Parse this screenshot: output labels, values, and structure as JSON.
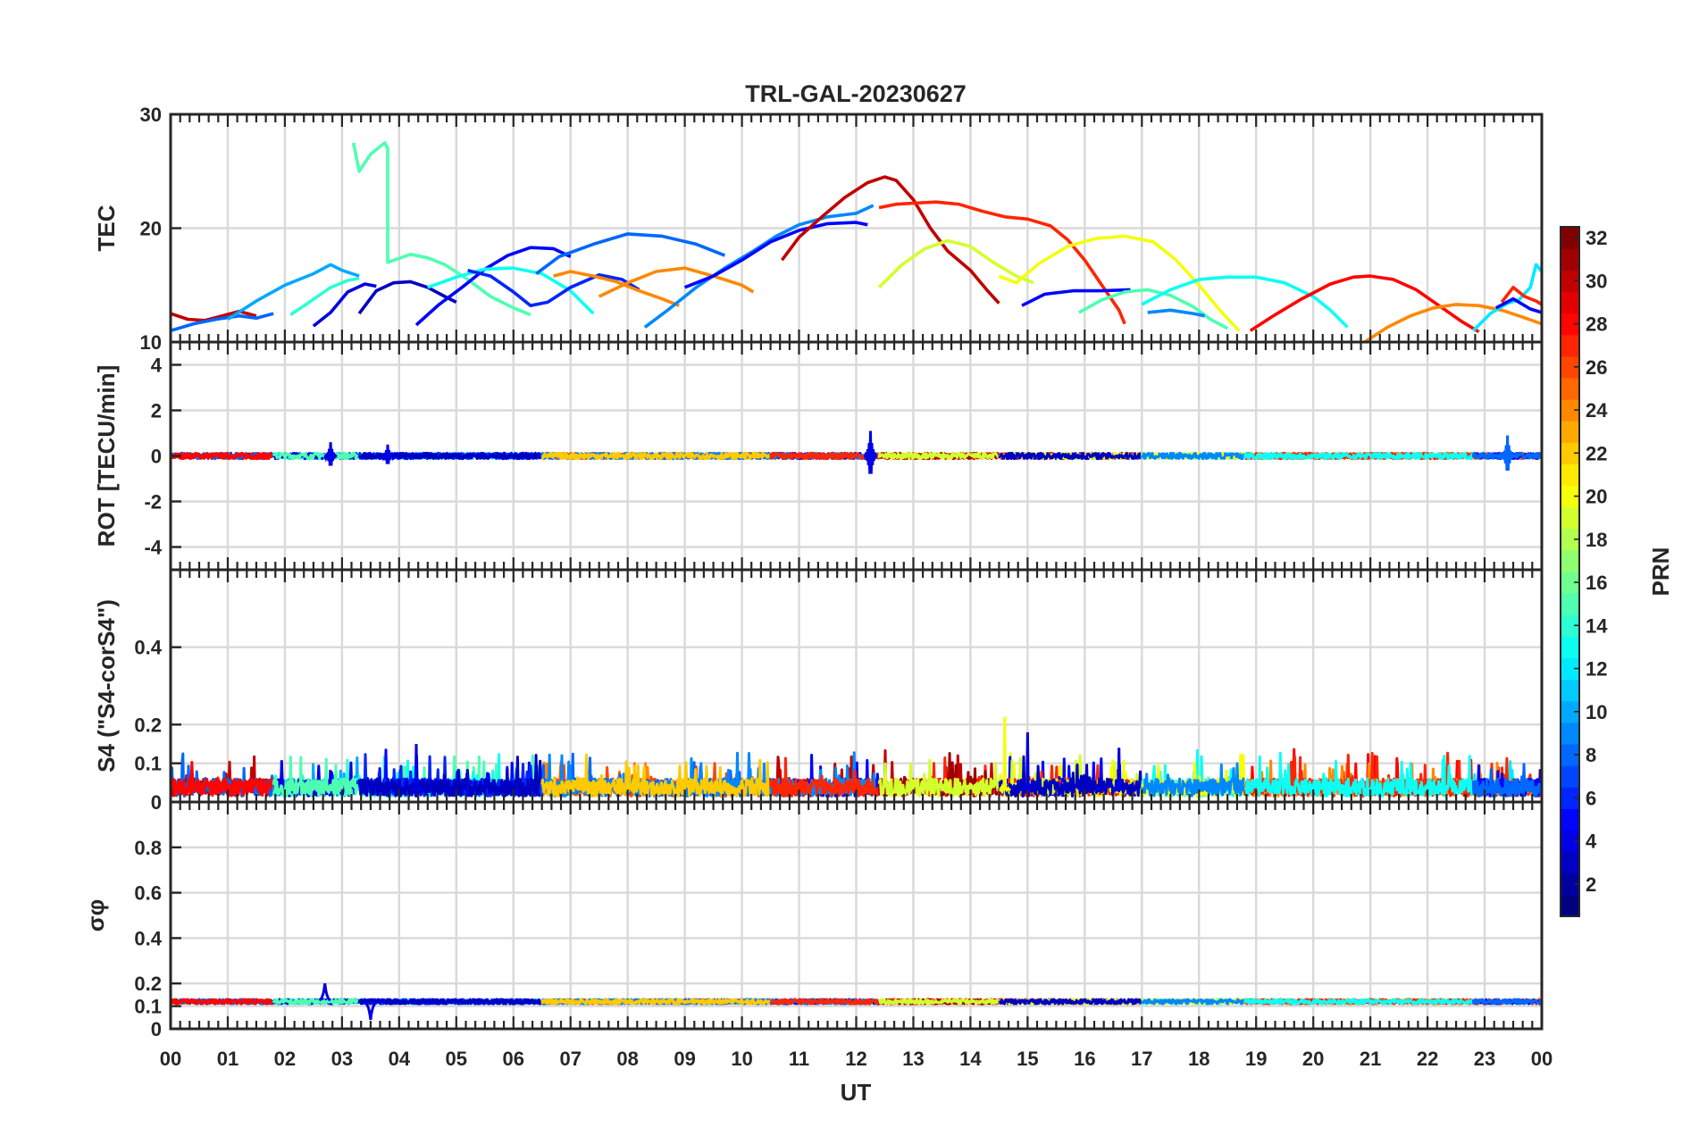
{
  "chart_data": {
    "type": "line",
    "title": "TRL-GAL-20230627",
    "xlabel": "UT",
    "x_ticks": [
      "00",
      "01",
      "02",
      "03",
      "04",
      "05",
      "06",
      "07",
      "08",
      "09",
      "10",
      "11",
      "12",
      "13",
      "14",
      "15",
      "16",
      "17",
      "18",
      "19",
      "20",
      "21",
      "22",
      "23",
      "00"
    ],
    "xlim": [
      0,
      24
    ],
    "grid": true,
    "colormap": "jet",
    "colorbar": {
      "label": "PRN",
      "range": [
        1,
        32
      ],
      "ticks": [
        2,
        4,
        6,
        8,
        10,
        12,
        14,
        16,
        18,
        20,
        22,
        24,
        26,
        28,
        30,
        32
      ],
      "placement": "right"
    },
    "panels": [
      {
        "id": "tec",
        "ylabel": "TEC",
        "ylim": [
          10,
          30
        ],
        "yticks": [
          10,
          20,
          30
        ],
        "series": [
          {
            "prn": 30,
            "x": [
              0.0,
              0.3,
              0.6,
              0.9,
              1.2,
              1.5
            ],
            "y": [
              12.5,
              12.0,
              11.9,
              12.3,
              12.7,
              12.3
            ]
          },
          {
            "prn": 8,
            "x": [
              0.0,
              0.4,
              0.8,
              1.2,
              1.5,
              1.8
            ],
            "y": [
              11.0,
              11.6,
              12.0,
              12.3,
              12.1,
              12.5
            ]
          },
          {
            "prn": 10,
            "x": [
              1.0,
              1.5,
              2.0,
              2.5,
              2.8,
              3.0,
              3.3
            ],
            "y": [
              12.0,
              13.6,
              15.0,
              16.0,
              16.8,
              16.3,
              15.8
            ]
          },
          {
            "prn": 14,
            "x": [
              2.1,
              2.4,
              2.8,
              3.1,
              3.3
            ],
            "y": [
              12.4,
              13.4,
              14.8,
              15.4,
              15.6
            ]
          },
          {
            "prn": 4,
            "x": [
              2.5,
              2.8,
              3.1,
              3.4,
              3.6
            ],
            "y": [
              11.4,
              12.6,
              14.4,
              15.1,
              14.9
            ]
          },
          {
            "prn": 15,
            "x": [
              3.2,
              3.3,
              3.5,
              3.75,
              3.8,
              3.8,
              4.2,
              4.5,
              4.8,
              5.2,
              5.6,
              6.0,
              6.3
            ],
            "y": [
              27.5,
              25.0,
              26.5,
              27.5,
              27.0,
              17.0,
              17.7,
              17.4,
              16.8,
              15.5,
              14.0,
              13.0,
              12.4
            ]
          },
          {
            "prn": 3,
            "x": [
              3.3,
              3.6,
              3.9,
              4.2,
              4.5,
              4.8,
              5.0
            ],
            "y": [
              12.5,
              14.5,
              15.2,
              15.3,
              14.8,
              14.0,
              13.5
            ]
          },
          {
            "prn": 5,
            "x": [
              4.3,
              4.7,
              5.1,
              5.5,
              5.9,
              6.3,
              6.7,
              7.0
            ],
            "y": [
              11.5,
              13.3,
              14.8,
              16.4,
              17.6,
              18.3,
              18.2,
              17.5
            ]
          },
          {
            "prn": 13,
            "x": [
              4.5,
              5.0,
              5.5,
              6.0,
              6.5,
              7.0,
              7.4
            ],
            "y": [
              14.8,
              15.7,
              16.4,
              16.5,
              16.0,
              14.5,
              12.5
            ]
          },
          {
            "prn": 6,
            "x": [
              5.2,
              5.6,
              6.0,
              6.3,
              6.6,
              7.0,
              7.5,
              7.9,
              8.2
            ],
            "y": [
              16.3,
              15.8,
              14.4,
              13.2,
              13.5,
              14.8,
              15.9,
              15.5,
              14.6
            ]
          },
          {
            "prn": 24,
            "x": [
              6.7,
              7.0,
              7.4,
              7.8,
              8.2,
              8.6,
              8.9
            ],
            "y": [
              15.8,
              16.2,
              15.8,
              15.3,
              14.5,
              13.8,
              13.2
            ]
          },
          {
            "prn": 8,
            "x": [
              6.4,
              6.8,
              7.4,
              8.0,
              8.6,
              9.2,
              9.7
            ],
            "y": [
              16.0,
              17.5,
              18.6,
              19.5,
              19.3,
              18.6,
              17.6
            ]
          },
          {
            "prn": 24,
            "x": [
              7.5,
              8.0,
              8.5,
              9.0,
              9.5,
              10.0,
              10.2
            ],
            "y": [
              14.0,
              15.2,
              16.2,
              16.5,
              15.8,
              15.0,
              14.4
            ]
          },
          {
            "prn": 9,
            "x": [
              8.3,
              8.7,
              9.2,
              9.7,
              10.2,
              10.6,
              11.0,
              11.5,
              12.0,
              12.3
            ],
            "y": [
              11.3,
              12.8,
              14.8,
              16.5,
              18.0,
              19.3,
              20.3,
              21.0,
              21.3,
              22.0
            ]
          },
          {
            "prn": 5,
            "x": [
              9.0,
              9.5,
              10.0,
              10.5,
              11.0,
              11.5,
              12.0,
              12.2
            ],
            "y": [
              14.8,
              15.8,
              17.2,
              18.8,
              19.8,
              20.4,
              20.5,
              20.3
            ]
          },
          {
            "prn": 30,
            "x": [
              10.7,
              11.0,
              11.4,
              11.8,
              12.2,
              12.5,
              12.7,
              13.0,
              13.3,
              13.6,
              14.0,
              14.3,
              14.5
            ],
            "y": [
              17.2,
              19.2,
              21.0,
              22.7,
              24.0,
              24.5,
              24.2,
              22.5,
              20.0,
              18.0,
              16.3,
              14.5,
              13.4
            ]
          },
          {
            "prn": 27,
            "x": [
              12.4,
              12.7,
              13.0,
              13.4,
              13.8,
              14.2,
              14.6,
              15.0,
              15.4,
              15.7,
              16.0,
              16.3,
              16.6,
              16.7
            ],
            "y": [
              21.8,
              22.1,
              22.2,
              22.3,
              22.1,
              21.5,
              21.0,
              20.8,
              20.2,
              19.0,
              17.2,
              15.0,
              12.8,
              11.6
            ]
          },
          {
            "prn": 19,
            "x": [
              12.4,
              12.8,
              13.2,
              13.6,
              14.0,
              14.4,
              14.8,
              15.1
            ],
            "y": [
              14.8,
              16.8,
              18.2,
              18.9,
              18.4,
              17.0,
              15.8,
              15.2
            ]
          },
          {
            "prn": 20,
            "x": [
              14.5,
              14.8,
              15.2,
              15.7,
              16.2,
              16.7,
              17.2,
              17.6,
              18.0,
              18.4,
              18.7
            ],
            "y": [
              15.8,
              15.2,
              16.9,
              18.4,
              19.1,
              19.3,
              18.8,
              17.2,
              15.0,
              12.6,
              11.0
            ]
          },
          {
            "prn": 5,
            "x": [
              14.9,
              15.3,
              15.8,
              16.3,
              16.8
            ],
            "y": [
              13.2,
              14.2,
              14.5,
              14.5,
              14.6
            ]
          },
          {
            "prn": 15,
            "x": [
              15.9,
              16.3,
              16.7,
              17.1,
              17.5,
              17.9,
              18.2,
              18.5
            ],
            "y": [
              12.6,
              13.7,
              14.4,
              14.6,
              14.1,
              13.1,
              12.0,
              11.2
            ]
          },
          {
            "prn": 13,
            "x": [
              17.0,
              17.5,
              18.0,
              18.5,
              19.0,
              19.5,
              20.0,
              20.3,
              20.6
            ],
            "y": [
              13.3,
              14.6,
              15.5,
              15.7,
              15.7,
              15.2,
              14.0,
              12.8,
              11.3
            ]
          },
          {
            "prn": 9,
            "x": [
              17.1,
              17.5,
              17.9,
              18.1
            ],
            "y": [
              12.6,
              12.8,
              12.5,
              12.3
            ]
          },
          {
            "prn": 28,
            "x": [
              18.9,
              19.3,
              19.8,
              20.3,
              20.7,
              21.0,
              21.4,
              21.8,
              22.2,
              22.6,
              22.9
            ],
            "y": [
              11.0,
              12.3,
              13.8,
              15.1,
              15.7,
              15.8,
              15.5,
              14.6,
              13.2,
              11.8,
              10.9
            ]
          },
          {
            "prn": 24,
            "x": [
              20.9,
              21.3,
              21.7,
              22.1,
              22.5,
              22.9,
              23.3,
              23.6,
              24.0
            ],
            "y": [
              10.0,
              11.3,
              12.3,
              13.0,
              13.3,
              13.2,
              12.8,
              12.3,
              11.6
            ]
          },
          {
            "prn": 12,
            "x": [
              22.8,
              23.1,
              23.4,
              23.6,
              23.8,
              23.9,
              24.0
            ],
            "y": [
              11.0,
              12.5,
              13.4,
              13.7,
              14.8,
              16.8,
              16.2
            ]
          },
          {
            "prn": 27,
            "x": [
              23.3,
              23.5,
              23.7,
              23.9,
              24.0
            ],
            "y": [
              13.5,
              14.8,
              14.0,
              13.6,
              13.3
            ]
          },
          {
            "prn": 5,
            "x": [
              23.2,
              23.5,
              23.8,
              24.0
            ],
            "y": [
              13.0,
              13.8,
              12.9,
              12.6
            ]
          }
        ]
      },
      {
        "id": "rot",
        "ylabel": "ROT [TECU/min]",
        "ylim": [
          -5,
          5
        ],
        "yticks": [
          -4,
          -2,
          0,
          2,
          4
        ],
        "baseline": 0
      },
      {
        "id": "s4",
        "ylabel": "S4 (\"S4-corS4\")",
        "ylim": [
          0,
          0.6
        ],
        "yticks": [
          0,
          0.1,
          0.2,
          0.4
        ],
        "baseline": 0.05
      },
      {
        "id": "sigma",
        "ylabel": "σφ",
        "ylim": [
          0,
          1
        ],
        "yticks": [
          0,
          0.1,
          0.2,
          0.4,
          0.6,
          0.8
        ],
        "baseline": 0.12
      }
    ],
    "prn_timeline": [
      {
        "start": 0.0,
        "end": 1.8,
        "prns": [
          30,
          8,
          28
        ]
      },
      {
        "start": 1.8,
        "end": 3.3,
        "prns": [
          10,
          14,
          4,
          15
        ]
      },
      {
        "start": 3.3,
        "end": 6.5,
        "prns": [
          15,
          13,
          5,
          6,
          3
        ]
      },
      {
        "start": 6.5,
        "end": 10.5,
        "prns": [
          24,
          26,
          8,
          9,
          22
        ]
      },
      {
        "start": 10.5,
        "end": 12.4,
        "prns": [
          30,
          5,
          9,
          27
        ]
      },
      {
        "start": 12.4,
        "end": 14.5,
        "prns": [
          30,
          27,
          31,
          19
        ]
      },
      {
        "start": 14.5,
        "end": 17.0,
        "prns": [
          20,
          5,
          27,
          19,
          3
        ]
      },
      {
        "start": 17.0,
        "end": 18.8,
        "prns": [
          13,
          15,
          20,
          9
        ]
      },
      {
        "start": 18.8,
        "end": 22.8,
        "prns": [
          28,
          24,
          27,
          13
        ]
      },
      {
        "start": 22.8,
        "end": 24.0,
        "prns": [
          12,
          27,
          24,
          5,
          8
        ]
      }
    ],
    "events": [
      {
        "panel": "rot",
        "x": 12.25,
        "amp": 1.1
      },
      {
        "panel": "rot",
        "x": 2.8,
        "amp": 0.6
      },
      {
        "panel": "rot",
        "x": 3.8,
        "amp": 0.5
      },
      {
        "panel": "rot",
        "x": 23.4,
        "amp": 0.9
      },
      {
        "panel": "s4",
        "x": 14.6,
        "amp": 0.22
      },
      {
        "panel": "s4",
        "x": 15.0,
        "amp": 0.18
      },
      {
        "panel": "s4",
        "x": 4.3,
        "amp": 0.15
      },
      {
        "panel": "s4",
        "x": 16.6,
        "amp": 0.14
      },
      {
        "panel": "sigma",
        "x": 2.7,
        "amp": 0.2
      },
      {
        "panel": "sigma",
        "x": 3.5,
        "amp": 0.04
      }
    ]
  }
}
